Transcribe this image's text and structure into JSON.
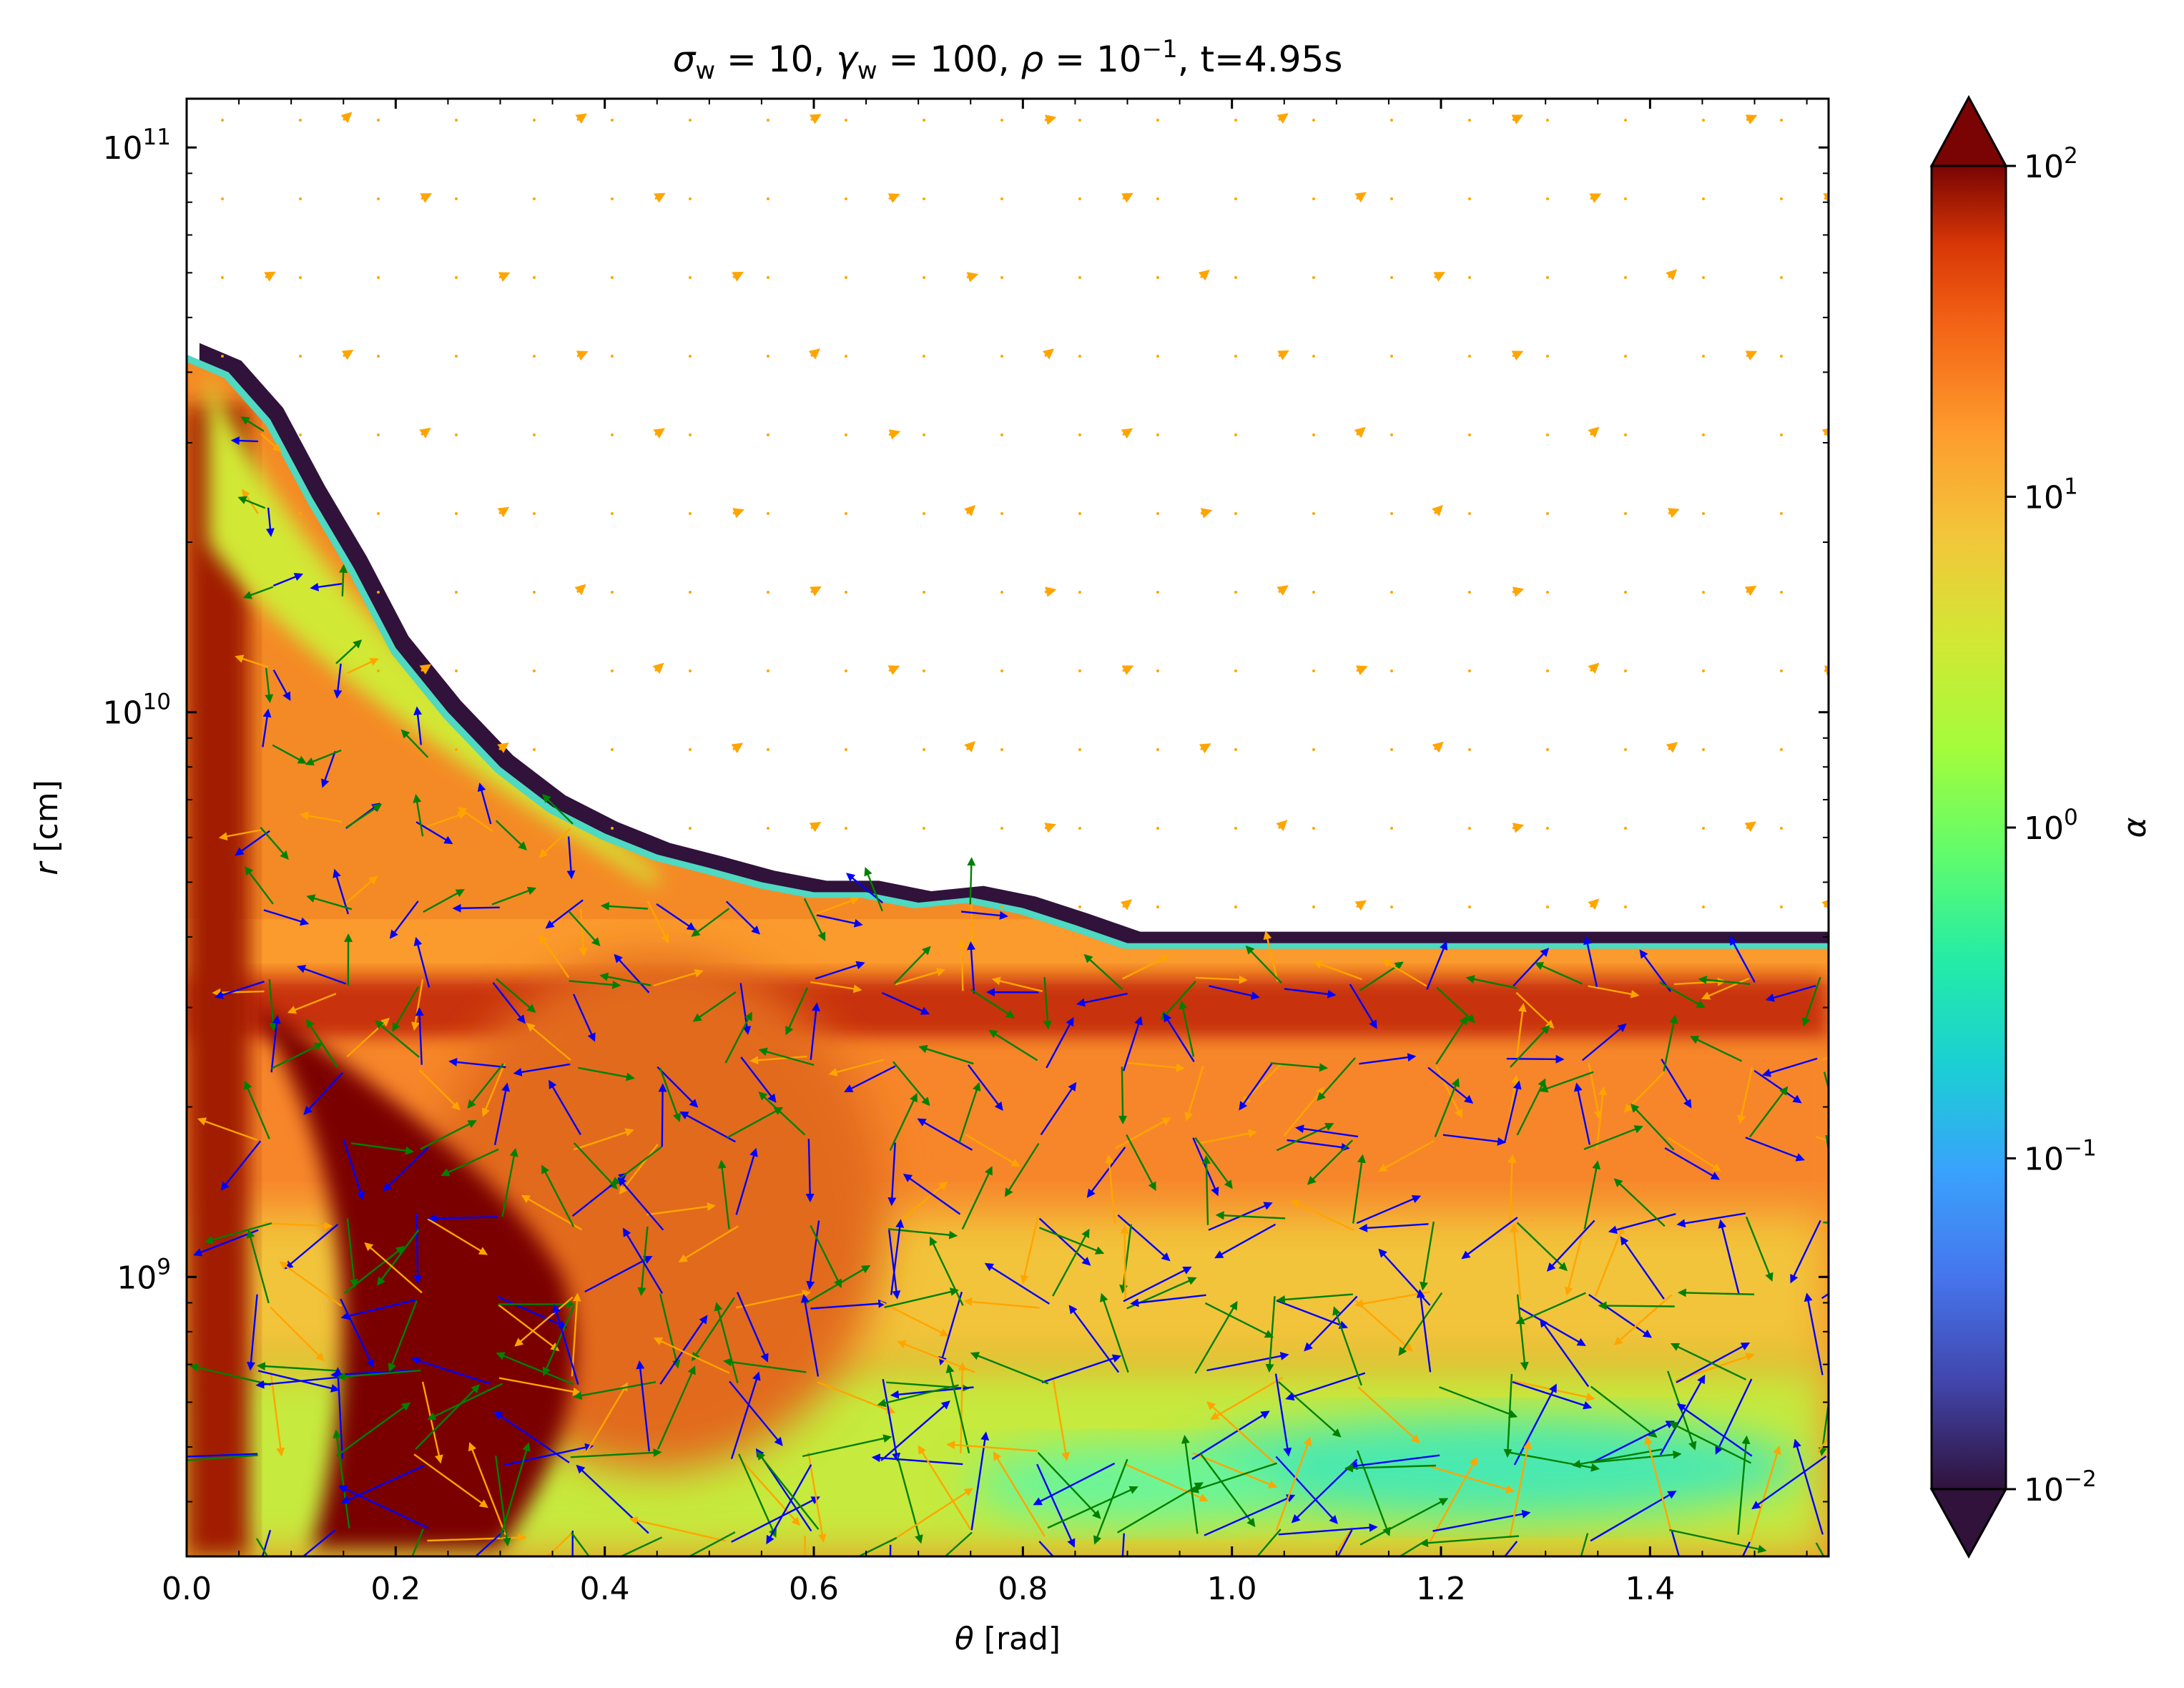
{
  "chart_data": {
    "type": "heatmap",
    "title": "σw = 10, γw = 100, ρ = 10⁻¹, t=4.95s",
    "title_parts": {
      "sigma": "σ",
      "sigma_sub": "w",
      "sigma_val": " = 10, ",
      "gamma": "γ",
      "gamma_sub": "w",
      "gamma_val": " = 100, ",
      "rho": "ρ",
      "rho_val": " = 10",
      "rho_exp": "−1",
      "time": ", t=4.95s"
    },
    "xlabel": "θ [rad]",
    "xlabel_parts": {
      "symbol": "θ",
      "unit": " [rad]"
    },
    "ylabel": "r [cm]",
    "ylabel_parts": {
      "symbol": "r",
      "unit": " [cm]"
    },
    "xlim": [
      0.0,
      1.5708
    ],
    "ylim": [
      320000000.0,
      122000000000.0
    ],
    "yscale": "log",
    "xticks": [
      {
        "value": 0.0,
        "label": "0.0"
      },
      {
        "value": 0.2,
        "label": "0.2"
      },
      {
        "value": 0.4,
        "label": "0.4"
      },
      {
        "value": 0.6,
        "label": "0.6"
      },
      {
        "value": 0.8,
        "label": "0.8"
      },
      {
        "value": 1.0,
        "label": "1.0"
      },
      {
        "value": 1.2,
        "label": "1.2"
      },
      {
        "value": 1.4,
        "label": "1.4"
      }
    ],
    "yticks": [
      {
        "value": 1000000000.0,
        "base": "10",
        "exp": "9"
      },
      {
        "value": 10000000000.0,
        "base": "10",
        "exp": "10"
      },
      {
        "value": 100000000000.0,
        "base": "10",
        "exp": "11"
      }
    ],
    "colorbar": {
      "label": "α",
      "scale": "log",
      "range": [
        0.01,
        100
      ],
      "colormap": "turbo",
      "extend": "both",
      "ticks": [
        {
          "value": 100,
          "base": "10",
          "exp": "2"
        },
        {
          "value": 10,
          "base": "10",
          "exp": "1"
        },
        {
          "value": 1,
          "base": "10",
          "exp": "0"
        },
        {
          "value": 0.1,
          "base": "10",
          "exp": "−1"
        },
        {
          "value": 0.01,
          "base": "10",
          "exp": "−2"
        }
      ]
    },
    "outflow_boundary": {
      "description": "outer edge of the coloured region (beyond it the field is blank)",
      "theta": [
        0.0,
        0.04,
        0.08,
        0.12,
        0.16,
        0.2,
        0.25,
        0.3,
        0.35,
        0.4,
        0.45,
        0.5,
        0.55,
        0.6,
        0.65,
        0.7,
        0.75,
        0.8,
        0.85,
        0.9,
        0.95,
        1.0,
        1.1,
        1.2,
        1.3,
        1.4,
        1.5708
      ],
      "r": [
        43000000000.0,
        40000000000.0,
        33000000000.0,
        24000000000.0,
        18000000000.0,
        13000000000.0,
        10000000000.0,
        8000000000.0,
        6800000000.0,
        6100000000.0,
        5600000000.0,
        5300000000.0,
        5000000000.0,
        4800000000.0,
        4800000000.0,
        4600000000.0,
        4700000000.0,
        4500000000.0,
        4200000000.0,
        3900000000.0,
        3900000000.0,
        3900000000.0,
        3900000000.0,
        3900000000.0,
        3900000000.0,
        3900000000.0,
        3900000000.0
      ]
    },
    "regions": [
      {
        "name": "dark shell at the outflow front",
        "alpha": 0.01
      },
      {
        "name": "hot high-α wedge near the axis",
        "theta_range": [
          0.05,
          0.38
        ],
        "r_range": [
          500000000.0,
          3000000000.0
        ],
        "alpha": 100
      },
      {
        "name": "bright band below the shell",
        "r_range": [
          2500000000.0,
          3300000000.0
        ],
        "alpha": 70
      },
      {
        "name": "turbulent low-α zone near the equator",
        "theta_range": [
          0.95,
          1.5708
        ],
        "r_range": [
          380000000.0,
          580000000.0
        ],
        "alpha": 0.2
      }
    ],
    "vector_series": [
      {
        "color": "#ffa500",
        "where": "whole domain (small arrows/dots outside the flow)"
      },
      {
        "color": "#0000ff",
        "where": "inside the flow"
      },
      {
        "color": "#008000",
        "where": "inside the flow"
      }
    ]
  }
}
